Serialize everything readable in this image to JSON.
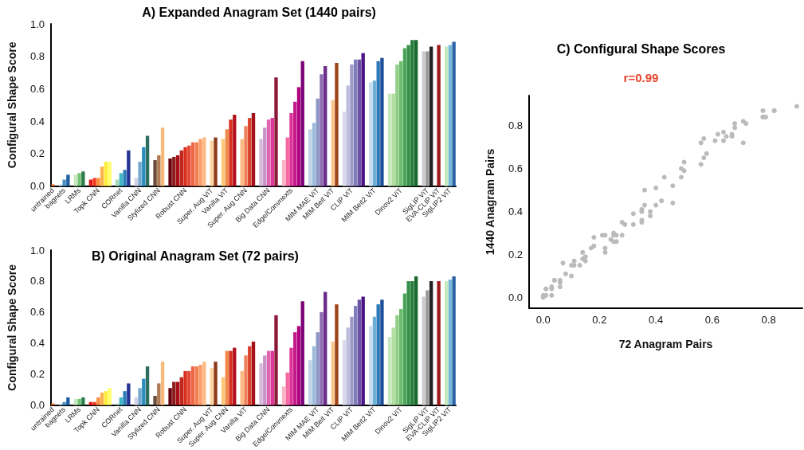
{
  "chart_data": [
    {
      "type": "bar",
      "title": "A) Expanded Anagram Set (1440 pairs)",
      "ylabel": "Configural Shape Score",
      "categories": [
        "untrained",
        null,
        null,
        "bagnets",
        null,
        null,
        null,
        "LRMs",
        null,
        null,
        null,
        null,
        "Topk CNN",
        null,
        null,
        null,
        null,
        null,
        "CORnet",
        null,
        null,
        null,
        null,
        "Vanilla CNN",
        null,
        null,
        null,
        null,
        "Stylized CNN",
        null,
        null,
        null,
        null,
        null,
        null,
        "Robust CNN",
        null,
        null,
        null,
        null,
        null,
        null,
        "Super. Aug ViT",
        null,
        null,
        null,
        "Vanilla ViT",
        null,
        null,
        null,
        null,
        "Super. Aug CNN",
        null,
        null,
        null,
        null,
        null,
        "Big Data CNN",
        null,
        null,
        null,
        null,
        null,
        "Edge/Convnexts",
        null,
        null,
        null,
        null,
        null,
        null,
        "MIM MAE ViT",
        null,
        null,
        null,
        "MIM Beit ViT",
        null,
        null,
        null,
        null,
        "CLIP ViT",
        null,
        null,
        null,
        null,
        null,
        "MIM Beit2 ViT",
        null,
        null,
        null,
        null,
        null,
        null,
        "Dinov2 ViT",
        null,
        null,
        null,
        null,
        null,
        null,
        "SigLIP ViT",
        null,
        null,
        "EVA-CLIP ViT",
        null,
        null,
        "SigLIP2 ViT",
        null
      ],
      "values": [
        0.01,
        null,
        0.01,
        0.04,
        0.07,
        null,
        0.07,
        0.08,
        0.09,
        null,
        0.04,
        0.05,
        0.05,
        0.12,
        0.15,
        0.15,
        null,
        0.04,
        0.08,
        0.1,
        0.22,
        null,
        0.05,
        0.15,
        0.24,
        0.31,
        null,
        0.16,
        0.19,
        0.36,
        null,
        0.17,
        0.18,
        0.19,
        0.22,
        0.24,
        0.25,
        0.27,
        0.27,
        0.29,
        0.3,
        null,
        0.28,
        0.3,
        null,
        0.29,
        0.35,
        0.41,
        0.44,
        null,
        0.29,
        0.37,
        0.42,
        0.45,
        null,
        0.29,
        0.36,
        0.41,
        0.42,
        0.67,
        null,
        0.16,
        0.3,
        0.45,
        0.52,
        0.61,
        0.77,
        null,
        0.35,
        0.39,
        0.54,
        0.69,
        0.74,
        null,
        0.53,
        0.76,
        null,
        0.46,
        0.62,
        0.75,
        0.78,
        0.78,
        0.82,
        null,
        0.64,
        0.65,
        0.77,
        0.79,
        null,
        0.57,
        0.57,
        0.75,
        0.77,
        0.85,
        0.87,
        0.9,
        0.9,
        null,
        0.83,
        0.83,
        0.86,
        null,
        0.87,
        null,
        0.86,
        0.87,
        0.89
      ],
      "colors": [
        "#f16913",
        null,
        "#c6dbef",
        "#4a90c4",
        "#1f5fa0",
        null,
        "#c7e9c0",
        "#74c476",
        "#2e7d4f",
        null,
        "#e31a1c",
        "#f03b20",
        "#fd8d3c",
        "#feb24c",
        "#ffeb3b",
        "#ffff66",
        null,
        "#a1dab4",
        "#41b6c4",
        "#2c7fb8",
        "#253494",
        null,
        "#d0d1e6",
        "#74a9cf",
        "#2b8cbe",
        "#2d6e5e",
        null,
        "#6b4a3a",
        "#b07a55",
        "#f7b97a",
        null,
        "#67000d",
        "#8b1a1a",
        "#a50f15",
        "#c0281f",
        "#d7301f",
        "#e34a33",
        "#ef6548",
        "#f08050",
        "#fc9c6a",
        "#fdbb84",
        null,
        "#fdd49e",
        "#8c3a1a",
        null,
        "#fdc876",
        "#f08a4b",
        "#d7301f",
        "#b3121e",
        null,
        "#fdbb84",
        "#f0805a",
        "#d7402b",
        "#a50f15",
        null,
        "#d4b9da",
        "#c994c7",
        "#df65b0",
        "#dd3497",
        "#8b1a3a",
        null,
        "#fbb4c4",
        "#f768a1",
        "#dd3497",
        "#c51b8a",
        "#ae017e",
        "#7a0177",
        null,
        "#bfd3e6",
        "#9ebcda",
        "#8c96c6",
        "#8c6bb1",
        "#6a2b8a",
        null,
        "#fdc890",
        "#a0441a",
        null,
        "#dadaeb",
        "#bcbddc",
        "#9e9ac8",
        "#807dba",
        "#6a51a3",
        "#4a1486",
        null,
        "#c6dbef",
        "#6baed6",
        "#2f78b8",
        "#1f4f99",
        null,
        "#c7e9c0",
        "#b0dea0",
        "#8fce84",
        "#6dbb6d",
        "#4aa55a",
        "#368f48",
        "#277a3a",
        "#1a6a2e",
        null,
        "#cccccc",
        "#999999",
        "#222222",
        null,
        "#9e1b1b",
        null,
        "#c7e9c0",
        "#74b9d6",
        "#2b63a8"
      ],
      "ylim": [
        0,
        1
      ],
      "yticks": [
        {
          "value": 0,
          "label": "0.0"
        },
        {
          "value": 0.2,
          "label": "0.2"
        },
        {
          "value": 0.4,
          "label": "0.4"
        },
        {
          "value": 0.6,
          "label": "0.6"
        },
        {
          "value": 0.8,
          "label": "0.8"
        },
        {
          "value": 1,
          "label": "1.0"
        }
      ],
      "grid": false
    },
    {
      "type": "bar",
      "title": "B) Original Anagram Set (72 pairs)",
      "ylabel": "Configural Shape Score",
      "categories": [
        "untrained",
        null,
        null,
        "bagnets",
        null,
        null,
        null,
        "LRMs",
        null,
        null,
        null,
        null,
        "Topk CNN",
        null,
        null,
        null,
        null,
        null,
        "CORnet",
        null,
        null,
        null,
        null,
        "Vanilla CNN",
        null,
        null,
        null,
        null,
        "Stylized CNN",
        null,
        null,
        null,
        null,
        null,
        null,
        "Robust CNN",
        null,
        null,
        null,
        null,
        null,
        null,
        "Super. Aug ViT",
        null,
        null,
        null,
        "Super. Aug CNN",
        null,
        null,
        null,
        null,
        "Vanilla ViT",
        null,
        null,
        null,
        null,
        null,
        "Big Data CNN",
        null,
        null,
        null,
        null,
        null,
        "Edge/Convnexts",
        null,
        null,
        null,
        null,
        null,
        null,
        "MIM MAE ViT",
        null,
        null,
        null,
        "MIM Beit ViT",
        null,
        null,
        null,
        null,
        "CLIP ViT",
        null,
        null,
        null,
        null,
        null,
        "MIM Beit2 ViT",
        null,
        null,
        null,
        null,
        null,
        null,
        "Dinov2 ViT",
        null,
        null,
        null,
        null,
        null,
        null,
        "SigLIP ViT",
        null,
        null,
        "EVA-CLIP ViT",
        null,
        null,
        "SigLIP2 ViT",
        null
      ],
      "values": [
        0.01,
        null,
        0.01,
        0.02,
        0.05,
        null,
        0.04,
        0.04,
        0.05,
        null,
        0.02,
        0.02,
        0.05,
        0.08,
        0.09,
        0.11,
        null,
        0.01,
        0.05,
        0.09,
        0.14,
        null,
        0.05,
        0.11,
        0.17,
        0.25,
        null,
        0.06,
        0.14,
        0.28,
        null,
        0.11,
        0.15,
        0.15,
        0.18,
        0.22,
        0.22,
        0.25,
        0.25,
        0.26,
        0.28,
        null,
        0.24,
        0.28,
        null,
        0.18,
        0.35,
        0.35,
        0.37,
        null,
        0.22,
        0.32,
        0.38,
        0.41,
        null,
        0.27,
        0.32,
        0.35,
        0.35,
        0.58,
        null,
        0.12,
        0.21,
        0.37,
        0.47,
        0.51,
        0.67,
        null,
        0.29,
        0.38,
        0.47,
        0.6,
        0.73,
        null,
        0.41,
        0.65,
        null,
        0.42,
        0.5,
        0.57,
        0.64,
        0.68,
        0.7,
        null,
        0.51,
        0.57,
        0.65,
        0.68,
        null,
        0.44,
        0.5,
        0.58,
        0.62,
        0.72,
        0.8,
        0.8,
        0.83,
        null,
        0.7,
        0.74,
        0.8,
        null,
        0.8,
        null,
        0.8,
        0.81,
        0.83
      ],
      "colors": [
        "#f16913",
        null,
        "#c6dbef",
        "#4a90c4",
        "#1f5fa0",
        null,
        "#c7e9c0",
        "#74c476",
        "#2e7d4f",
        null,
        "#e31a1c",
        "#f03b20",
        "#fd8d3c",
        "#feb24c",
        "#ffeb3b",
        "#ffff66",
        null,
        "#a1dab4",
        "#41b6c4",
        "#2c7fb8",
        "#253494",
        null,
        "#d0d1e6",
        "#74a9cf",
        "#2b8cbe",
        "#2d6e5e",
        null,
        "#6b4a3a",
        "#b07a55",
        "#f7b97a",
        null,
        "#67000d",
        "#8b1a1a",
        "#a50f15",
        "#c0281f",
        "#d7301f",
        "#e34a33",
        "#ef6548",
        "#f08050",
        "#fc9c6a",
        "#fdbb84",
        null,
        "#fdd49e",
        "#8c3a1a",
        null,
        "#fdc876",
        "#f08a4b",
        "#d7301f",
        "#b3121e",
        null,
        "#fdbb84",
        "#f0805a",
        "#d7402b",
        "#a50f15",
        null,
        "#d4b9da",
        "#c994c7",
        "#df65b0",
        "#dd3497",
        "#8b1a3a",
        null,
        "#fbb4c4",
        "#f768a1",
        "#dd3497",
        "#c51b8a",
        "#ae017e",
        "#7a0177",
        null,
        "#bfd3e6",
        "#9ebcda",
        "#8c96c6",
        "#8c6bb1",
        "#6a2b8a",
        null,
        "#fdc890",
        "#a0441a",
        null,
        "#dadaeb",
        "#bcbddc",
        "#9e9ac8",
        "#807dba",
        "#6a51a3",
        "#4a1486",
        null,
        "#c6dbef",
        "#6baed6",
        "#2f78b8",
        "#1f4f99",
        null,
        "#c7e9c0",
        "#b0dea0",
        "#8fce84",
        "#6dbb6d",
        "#4aa55a",
        "#368f48",
        "#277a3a",
        "#1a6a2e",
        null,
        "#cccccc",
        "#999999",
        "#222222",
        null,
        "#9e1b1b",
        null,
        "#c7e9c0",
        "#74b9d6",
        "#2b63a8"
      ],
      "ylim": [
        0,
        1
      ],
      "yticks": [
        {
          "value": 0,
          "label": "0.0"
        },
        {
          "value": 0.2,
          "label": "0.2"
        },
        {
          "value": 0.4,
          "label": "0.4"
        },
        {
          "value": 0.6,
          "label": "0.6"
        },
        {
          "value": 0.8,
          "label": "0.8"
        },
        {
          "value": 1,
          "label": "1.0"
        }
      ],
      "grid": false
    },
    {
      "type": "scatter",
      "title": "C) Configural Shape Scores",
      "xlabel": "72 Anagram Pairs",
      "ylabel": "1440 Anagram Pairs",
      "annotations": [
        "r=0.99"
      ],
      "x": [
        0,
        0,
        0.01,
        0.03,
        0.01,
        0.01,
        0.03,
        0.03,
        0.04,
        0.04,
        0.06,
        0.06,
        0.06,
        0.07,
        0.08,
        0.1,
        0.1,
        0.11,
        0.11,
        0.13,
        0.14,
        0.14,
        0.15,
        0.15,
        0.17,
        0.18,
        0.18,
        0.21,
        0.22,
        0.22,
        0.22,
        0.24,
        0.25,
        0.25,
        0.25,
        0.26,
        0.26,
        0.28,
        0.28,
        0.29,
        0.32,
        0.32,
        0.35,
        0.35,
        0.35,
        0.35,
        0.36,
        0.36,
        0.38,
        0.38,
        0.4,
        0.4,
        0.42,
        0.43,
        0.46,
        0.46,
        0.49,
        0.49,
        0.5,
        0.5,
        0.56,
        0.56,
        0.57,
        0.57,
        0.58,
        0.61,
        0.62,
        0.64,
        0.64,
        0.65,
        0.67,
        0.67,
        0.68,
        0.68,
        0.71,
        0.71,
        0.72,
        0.78,
        0.78,
        0.78,
        0.79,
        0.82,
        0.82,
        0.9
      ],
      "values": [
        0,
        0.01,
        0.01,
        0.01,
        0.04,
        0.04,
        0.04,
        0.05,
        0.08,
        0.08,
        0.08,
        0.07,
        0.05,
        0.16,
        0.11,
        0.1,
        0.15,
        0.17,
        0.15,
        0.15,
        0.21,
        0.18,
        0.19,
        0.17,
        0.23,
        0.24,
        0.28,
        0.29,
        0.29,
        0.23,
        0.21,
        0.27,
        0.3,
        0.29,
        0.26,
        0.29,
        0.26,
        0.29,
        0.35,
        0.34,
        0.39,
        0.34,
        0.41,
        0.4,
        0.36,
        0.35,
        0.5,
        0.43,
        0.4,
        0.38,
        0.51,
        0.43,
        0.45,
        0.56,
        0.52,
        0.44,
        0.6,
        0.56,
        0.63,
        0.59,
        0.72,
        0.62,
        0.74,
        0.65,
        0.67,
        0.73,
        0.76,
        0.77,
        0.73,
        0.75,
        0.76,
        0.75,
        0.81,
        0.79,
        0.82,
        0.72,
        0.81,
        0.87,
        0.84,
        0.84,
        0.84,
        0.87,
        0.87,
        0.89
      ],
      "color": "#bbbbbb",
      "marker": "circle",
      "xlim": [
        -0.05,
        0.92
      ],
      "xticks": [
        {
          "value": 0,
          "label": "0.0"
        },
        {
          "value": 0.2,
          "label": "0.2"
        },
        {
          "value": 0.4,
          "label": "0.4"
        },
        {
          "value": 0.6,
          "label": "0.6"
        },
        {
          "value": 0.8,
          "label": "0.8"
        }
      ],
      "ylim": [
        -0.05,
        0.94
      ],
      "yticks": [
        {
          "value": 0,
          "label": "0.0"
        },
        {
          "value": 0.2,
          "label": "0.2"
        },
        {
          "value": 0.4,
          "label": "0.4"
        },
        {
          "value": 0.6,
          "label": "0.6"
        },
        {
          "value": 0.8,
          "label": "0.8"
        }
      ],
      "grid": false
    }
  ]
}
